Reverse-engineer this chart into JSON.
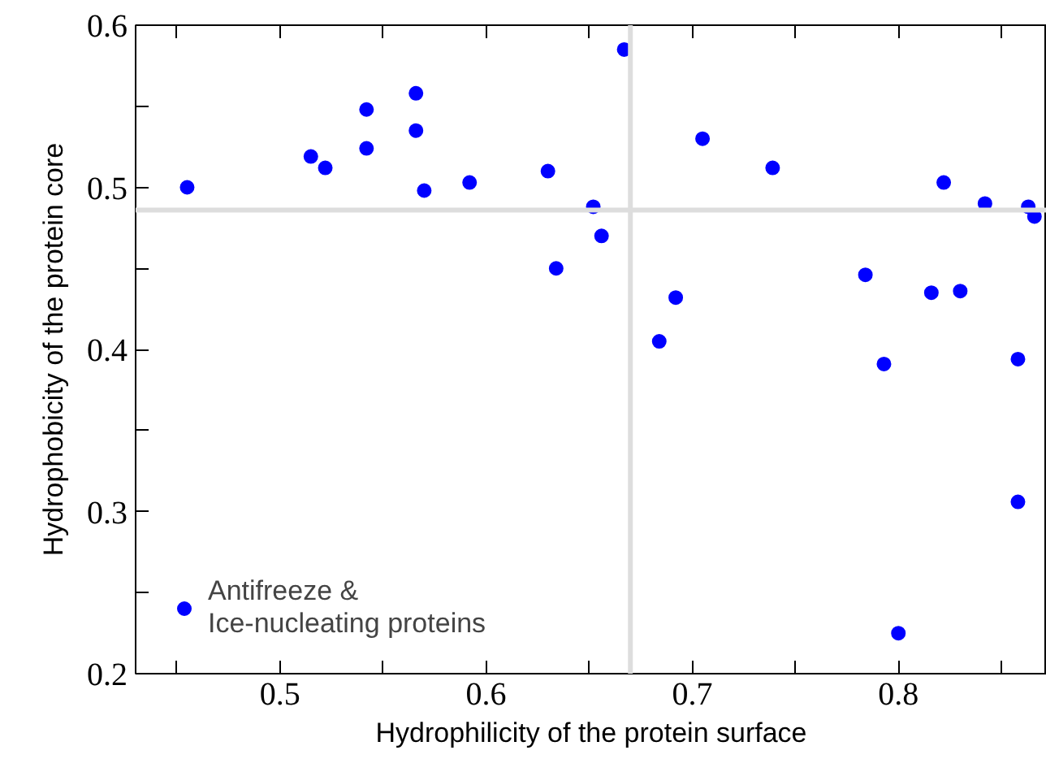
{
  "chart_data": {
    "type": "scatter",
    "xlabel": "Hydrophilicity of the protein surface",
    "ylabel": "Hydrophobicity of the protein core",
    "xlim": [
      0.43,
      0.872
    ],
    "ylim": [
      0.2,
      0.6
    ],
    "xticks": [
      {
        "value": 0.45,
        "label": null
      },
      0.5,
      {
        "value": 0.55,
        "label": null
      },
      0.6,
      {
        "value": 0.65,
        "label": null
      },
      0.7,
      {
        "value": 0.75,
        "label": null
      },
      0.8,
      {
        "value": 0.85,
        "label": null
      }
    ],
    "yticks": [
      0.2,
      {
        "value": 0.25,
        "label": null
      },
      0.3,
      {
        "value": 0.35,
        "label": null
      },
      0.4,
      {
        "value": 0.45,
        "label": null
      },
      0.5,
      {
        "value": 0.55,
        "label": null
      },
      0.6
    ],
    "grid": false,
    "legend": "bottom left",
    "marker": "circle",
    "ref_lines": [
      {
        "axis": "y",
        "value": 0.486,
        "color": "#dddddd"
      },
      {
        "axis": "x",
        "value": 0.67,
        "color": "#dddddd"
      }
    ],
    "series": [
      {
        "name": "Antifreeze &\nIce-nucleating proteins",
        "color": "#0000ff",
        "x": [
          0.455,
          0.515,
          0.522,
          0.542,
          0.542,
          0.566,
          0.566,
          0.57,
          0.592,
          0.63,
          0.634,
          0.652,
          0.656,
          0.667,
          0.705,
          0.739,
          0.822,
          0.842,
          0.863,
          0.866,
          0.784,
          0.816,
          0.83,
          0.692,
          0.684,
          0.793,
          0.858,
          0.858,
          0.8
        ],
        "values": [
          0.5,
          0.519,
          0.512,
          0.548,
          0.524,
          0.558,
          0.535,
          0.498,
          0.503,
          0.51,
          0.45,
          0.488,
          0.47,
          0.585,
          0.53,
          0.512,
          0.503,
          0.49,
          0.488,
          0.482,
          0.446,
          0.435,
          0.436,
          0.432,
          0.405,
          0.391,
          0.394,
          0.306,
          0.225
        ]
      }
    ]
  }
}
